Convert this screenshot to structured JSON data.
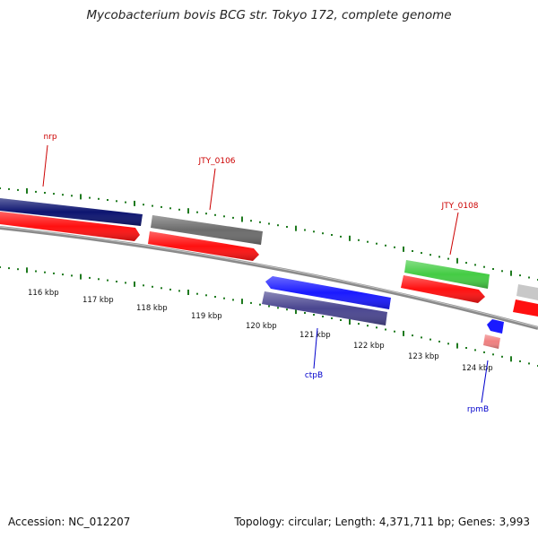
{
  "title": "Mycobacterium bovis BCG str. Tokyo 172, complete genome",
  "footer": {
    "accession": "Accession: NC_012207",
    "summary": "Topology: circular; Length: 4,371,711 bp; Genes: 3,993"
  },
  "colors": {
    "backbone": "#8a8a8a",
    "tick": "#1f7a1f",
    "label_red": "#cc0000",
    "label_blue": "#0000cc",
    "gene_navy": "#0c1470",
    "gene_red": "#ff1010",
    "gene_gray": "#6c6c6c",
    "gene_green": "#44cc44",
    "gene_blue": "#1a1aff",
    "gene_slate": "#4a4690",
    "gene_lightgray": "#c8c8c8",
    "gene_pink": "#f08080"
  },
  "scale": {
    "unit": "kbp",
    "labels": [
      "116 kbp",
      "117 kbp",
      "118 kbp",
      "119 kbp",
      "120 kbp",
      "121 kbp",
      "122 kbp",
      "123 kbp",
      "124 kbp"
    ]
  },
  "gene_labels": [
    {
      "name": "nrp",
      "color": "red"
    },
    {
      "name": "JTY_0106",
      "color": "red"
    },
    {
      "name": "JTY_0108",
      "color": "red"
    },
    {
      "name": "ctpB",
      "color": "blue"
    },
    {
      "name": "rpmB",
      "color": "blue"
    }
  ]
}
